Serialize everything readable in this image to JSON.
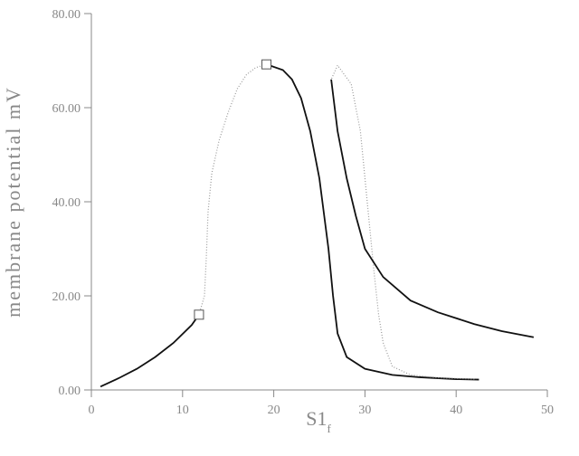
{
  "chart_data": {
    "type": "line",
    "ylabel": "membrane potential mV",
    "xlabel": "S1",
    "xlabel_sub": "f",
    "xlim": [
      0,
      50
    ],
    "ylim": [
      0,
      80
    ],
    "xticks": [
      0,
      10,
      20,
      30,
      40,
      50
    ],
    "yticks": [
      {
        "value": 0,
        "label": "0.00"
      },
      {
        "value": 20,
        "label": "20.00"
      },
      {
        "value": 40,
        "label": "40.00"
      },
      {
        "value": 60,
        "label": "60.00"
      },
      {
        "value": 80,
        "label": "80.00"
      }
    ],
    "axis_color": "#888888",
    "series": [
      {
        "style": "solid",
        "color": "#111111",
        "x": [
          1,
          3,
          5,
          7,
          9,
          11,
          11.8
        ],
        "y": [
          0.7,
          2.5,
          4.5,
          7,
          10,
          13.8,
          16
        ]
      },
      {
        "style": "dotted",
        "color": "#999999",
        "x": [
          11.8,
          12.4,
          12.6,
          12.8,
          13.2,
          14,
          15,
          16,
          17,
          18,
          19.2
        ],
        "y": [
          16,
          20,
          28,
          38,
          46,
          53,
          59,
          64,
          67,
          68.5,
          69.2
        ]
      },
      {
        "style": "solid",
        "color": "#111111",
        "x": [
          19.2,
          21,
          22,
          23,
          24,
          25,
          26,
          26.5,
          27,
          28,
          30,
          33,
          36,
          40,
          42.5
        ],
        "y": [
          69.2,
          68,
          66,
          62,
          55,
          45,
          30,
          20,
          12,
          7,
          4.5,
          3.2,
          2.7,
          2.3,
          2.2
        ]
      },
      {
        "style": "dotted",
        "color": "#999999",
        "x": [
          42,
          38,
          35,
          33,
          32,
          31.5,
          31,
          30.5,
          30,
          29.5,
          28.5,
          27,
          26.3
        ],
        "y": [
          2.3,
          2.6,
          3.2,
          5,
          10,
          16,
          25,
          35,
          45,
          55,
          65,
          69,
          66
        ]
      },
      {
        "style": "solid",
        "color": "#111111",
        "x": [
          26.3,
          27,
          28,
          29,
          30,
          32,
          35,
          38,
          42,
          45,
          48.5
        ],
        "y": [
          66,
          55,
          45,
          37,
          30,
          24,
          19,
          16.5,
          14,
          12.5,
          11.2
        ]
      }
    ],
    "markers": {
      "x": [
        11.8,
        19.2
      ],
      "y": [
        16,
        69.2
      ],
      "color": "#555555"
    }
  }
}
